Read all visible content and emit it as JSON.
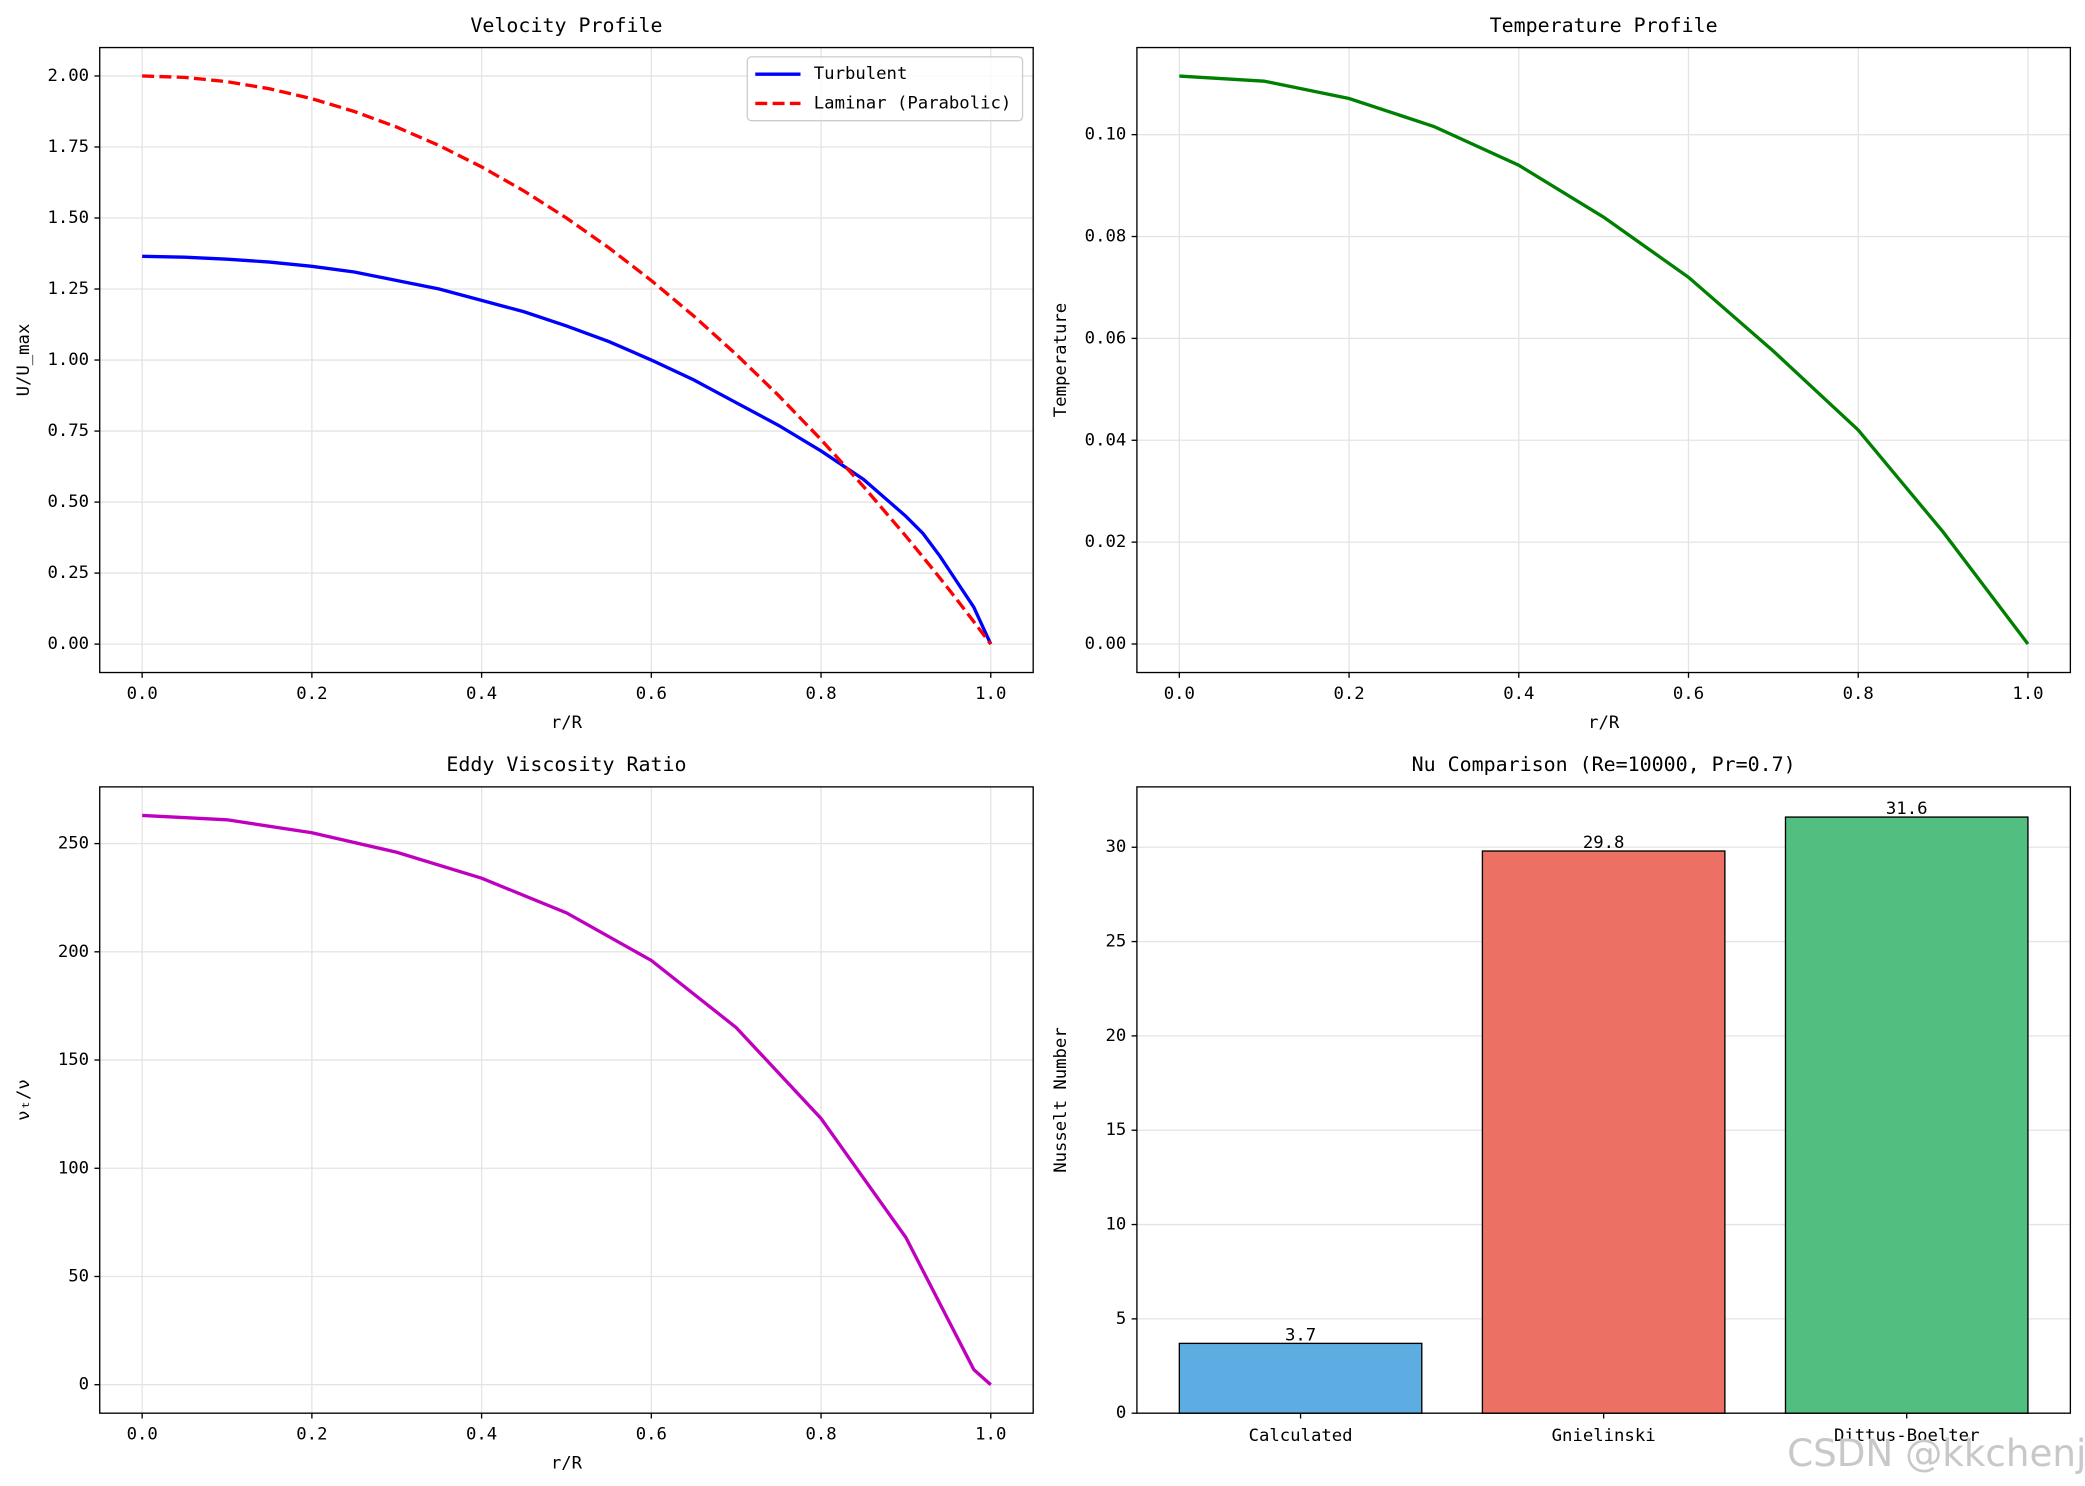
{
  "chart_data": [
    {
      "type": "line",
      "title": "Velocity Profile",
      "xlabel": "r/R",
      "ylabel": "U/U_max",
      "x": [
        0,
        0.05,
        0.1,
        0.15,
        0.2,
        0.25,
        0.3,
        0.35,
        0.4,
        0.45,
        0.5,
        0.55,
        0.6,
        0.65,
        0.7,
        0.75,
        0.8,
        0.85,
        0.9,
        0.92,
        0.94,
        0.96,
        0.98,
        1.0
      ],
      "series": [
        {
          "name": "Turbulent",
          "color": "#0000ff",
          "linestyle": "solid",
          "values": [
            1.365,
            1.362,
            1.355,
            1.345,
            1.33,
            1.31,
            1.28,
            1.25,
            1.21,
            1.17,
            1.12,
            1.065,
            1.0,
            0.93,
            0.85,
            0.77,
            0.68,
            0.58,
            0.45,
            0.39,
            0.31,
            0.22,
            0.13,
            0
          ]
        },
        {
          "name": "Laminar (Parabolic)",
          "color": "#ff0000",
          "linestyle": "dashed",
          "values": [
            2,
            1.995,
            1.98,
            1.955,
            1.92,
            1.875,
            1.82,
            1.755,
            1.68,
            1.595,
            1.5,
            1.395,
            1.28,
            1.155,
            1.02,
            0.875,
            0.72,
            0.555,
            0.38,
            0.307,
            0.233,
            0.157,
            0.079,
            0
          ]
        }
      ],
      "xlim": [
        -0.05,
        1.05
      ],
      "ylim": [
        -0.1,
        2.1
      ],
      "xticks": [
        {
          "value": 0,
          "label": "0.0"
        },
        {
          "value": 0.2,
          "label": "0.2"
        },
        {
          "value": 0.4,
          "label": "0.4"
        },
        {
          "value": 0.6,
          "label": "0.6"
        },
        {
          "value": 0.8,
          "label": "0.8"
        },
        {
          "value": 1,
          "label": "1.0"
        }
      ],
      "yticks": [
        {
          "value": 0,
          "label": "0.00"
        },
        {
          "value": 0.25,
          "label": "0.25"
        },
        {
          "value": 0.5,
          "label": "0.50"
        },
        {
          "value": 0.75,
          "label": "0.75"
        },
        {
          "value": 1,
          "label": "1.00"
        },
        {
          "value": 1.25,
          "label": "1.25"
        },
        {
          "value": 1.5,
          "label": "1.50"
        },
        {
          "value": 1.75,
          "label": "1.75"
        },
        {
          "value": 2,
          "label": "2.00"
        }
      ],
      "grid": "both",
      "legend": "upper right"
    },
    {
      "type": "line",
      "title": "Temperature Profile",
      "xlabel": "r/R",
      "ylabel": "Temperature",
      "x": [
        0,
        0.1,
        0.2,
        0.3,
        0.4,
        0.5,
        0.6,
        0.7,
        0.8,
        0.9,
        1.0
      ],
      "series": [
        {
          "color": "#008000",
          "linestyle": "solid",
          "values": [
            0.1115,
            0.1105,
            0.1071,
            0.1016,
            0.094,
            0.0838,
            0.072,
            0.0575,
            0.042,
            0.022,
            0
          ]
        }
      ],
      "xlim": [
        -0.05,
        1.05
      ],
      "ylim": [
        -0.0056,
        0.1171
      ],
      "xticks": [
        {
          "value": 0,
          "label": "0.0"
        },
        {
          "value": 0.2,
          "label": "0.2"
        },
        {
          "value": 0.4,
          "label": "0.4"
        },
        {
          "value": 0.6,
          "label": "0.6"
        },
        {
          "value": 0.8,
          "label": "0.8"
        },
        {
          "value": 1,
          "label": "1.0"
        }
      ],
      "yticks": [
        {
          "value": 0,
          "label": "0.00"
        },
        {
          "value": 0.02,
          "label": "0.02"
        },
        {
          "value": 0.04,
          "label": "0.04"
        },
        {
          "value": 0.06,
          "label": "0.06"
        },
        {
          "value": 0.08,
          "label": "0.08"
        },
        {
          "value": 0.1,
          "label": "0.10"
        }
      ],
      "grid": "both"
    },
    {
      "type": "line",
      "title": "Eddy Viscosity Ratio",
      "xlabel": "r/R",
      "ylabel": "νₜ/ν",
      "x": [
        0,
        0.1,
        0.2,
        0.3,
        0.4,
        0.5,
        0.6,
        0.7,
        0.8,
        0.9,
        0.98,
        1.0
      ],
      "series": [
        {
          "color": "#bf00bf",
          "linestyle": "solid",
          "values": [
            263,
            261,
            255,
            246,
            234,
            218,
            196,
            165,
            123,
            68,
            7,
            0
          ]
        }
      ],
      "xlim": [
        -0.05,
        1.05
      ],
      "ylim": [
        -13.15,
        276.2
      ],
      "xticks": [
        {
          "value": 0,
          "label": "0.0"
        },
        {
          "value": 0.2,
          "label": "0.2"
        },
        {
          "value": 0.4,
          "label": "0.4"
        },
        {
          "value": 0.6,
          "label": "0.6"
        },
        {
          "value": 0.8,
          "label": "0.8"
        },
        {
          "value": 1,
          "label": "1.0"
        }
      ],
      "yticks": [
        0,
        50,
        100,
        150,
        200,
        250
      ],
      "grid": "both"
    },
    {
      "type": "bar",
      "title": "Nu Comparison (Re=10000, Pr=0.7)",
      "ylabel": "Nusselt Number",
      "categories": [
        "Calculated",
        "Gnielinski",
        "Dittus-Boelter"
      ],
      "values": [
        3.7,
        29.8,
        31.6
      ],
      "colors": [
        "#5dade2",
        "#ec7063",
        "#52be80"
      ],
      "ylim": [
        0,
        33.2
      ],
      "yticks": [
        0,
        5,
        10,
        15,
        20,
        25,
        30
      ],
      "grid": "y"
    }
  ],
  "watermark": "CSDN @kkchenj"
}
